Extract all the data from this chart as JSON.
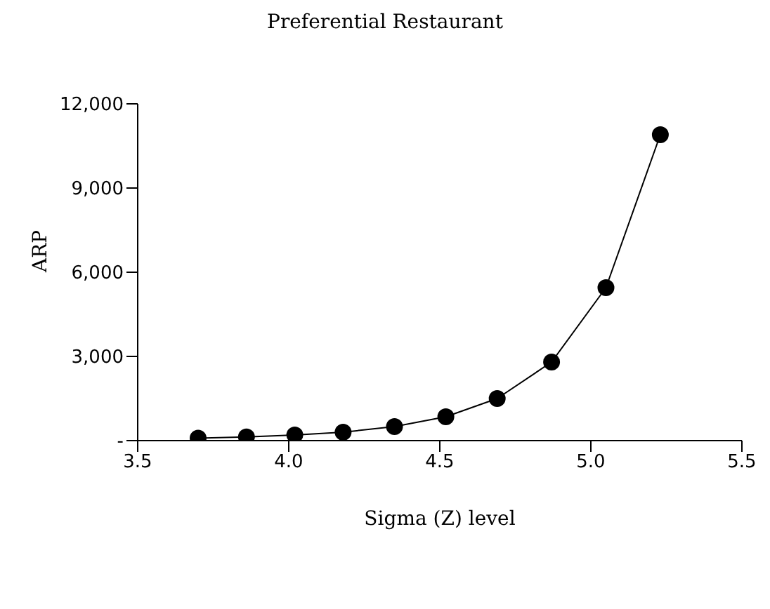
{
  "chart_data": {
    "type": "line",
    "title": "Preferential Restaurant",
    "xlabel": "Sigma (Z) level",
    "ylabel": "ARP",
    "x": [
      3.7,
      3.86,
      4.02,
      4.18,
      4.35,
      4.52,
      4.69,
      4.87,
      5.05,
      5.23
    ],
    "series": [
      {
        "color": "#000000",
        "values": [
          90,
          130,
          200,
          300,
          500,
          850,
          1500,
          2800,
          5450,
          10900
        ]
      }
    ],
    "xlim": [
      3.5,
      5.5
    ],
    "xticks": [
      3.5,
      {
        "value": 4,
        "label": "4.0"
      },
      4.5,
      {
        "value": 5,
        "label": "5.0"
      },
      5.5
    ],
    "ylim": [
      0,
      12000
    ],
    "yticks": [
      {
        "value": 0,
        "label": "-"
      },
      {
        "value": 3000,
        "label": "3,000"
      },
      {
        "value": 6000,
        "label": "6,000"
      },
      {
        "value": 9000,
        "label": "9,000"
      },
      {
        "value": 12000,
        "label": "12,000"
      }
    ],
    "grid": false,
    "legend": false,
    "marker": "circle",
    "line_style": "solid"
  }
}
